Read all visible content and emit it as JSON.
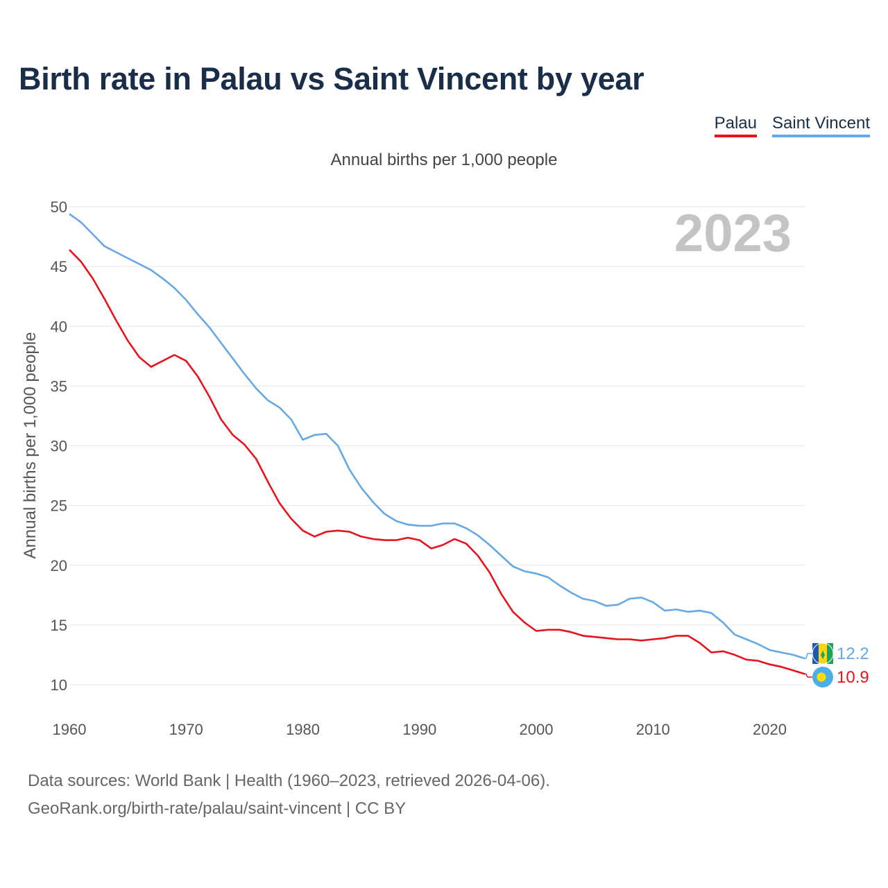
{
  "title": "Birth rate in Palau vs Saint Vincent by year",
  "subtitle": "Annual births per 1,000 people",
  "legend": {
    "palau": "Palau",
    "saint_vincent": "Saint Vincent"
  },
  "source_line1": "Data sources: World Bank | Health (1960–2023, retrieved 2026-04-06).",
  "source_line2": "GeoRank.org/birth-rate/palau/saint-vincent | CC BY",
  "colors": {
    "palau": "#e8121c",
    "saint_vincent": "#64a9e6",
    "title": "#1a2e4a"
  },
  "chart_data": {
    "type": "line",
    "title": "Birth rate in Palau vs Saint Vincent by year",
    "ylabel": "Annual births per 1,000 people",
    "xlabel": "",
    "year_label": "2023",
    "xlim": [
      1960,
      2023
    ],
    "ylim": [
      10,
      50
    ],
    "y_ticks": [
      10,
      15,
      20,
      25,
      30,
      35,
      40,
      45,
      50
    ],
    "x_ticks": [
      1960,
      1970,
      1980,
      1990,
      2000,
      2010,
      2020
    ],
    "x": [
      1960,
      1961,
      1962,
      1963,
      1964,
      1965,
      1966,
      1967,
      1968,
      1969,
      1970,
      1971,
      1972,
      1973,
      1974,
      1975,
      1976,
      1977,
      1978,
      1979,
      1980,
      1981,
      1982,
      1983,
      1984,
      1985,
      1986,
      1987,
      1988,
      1989,
      1990,
      1991,
      1992,
      1993,
      1994,
      1995,
      1996,
      1997,
      1998,
      1999,
      2000,
      2001,
      2002,
      2003,
      2004,
      2005,
      2006,
      2007,
      2008,
      2009,
      2010,
      2011,
      2012,
      2013,
      2014,
      2015,
      2016,
      2017,
      2018,
      2019,
      2020,
      2021,
      2022,
      2023
    ],
    "series": [
      {
        "name": "Palau",
        "end_label": "10.9",
        "values": [
          46.4,
          45.4,
          44.0,
          42.3,
          40.5,
          38.8,
          37.4,
          36.6,
          37.1,
          37.6,
          37.1,
          35.8,
          34.1,
          32.2,
          30.9,
          30.1,
          28.9,
          27.0,
          25.2,
          23.9,
          22.9,
          22.4,
          22.8,
          22.9,
          22.8,
          22.4,
          22.2,
          22.1,
          22.1,
          22.3,
          22.1,
          21.4,
          21.7,
          22.2,
          21.8,
          20.8,
          19.4,
          17.6,
          16.1,
          15.2,
          14.5,
          14.6,
          14.6,
          14.4,
          14.1,
          14.0,
          13.9,
          13.8,
          13.8,
          13.7,
          13.8,
          13.9,
          14.1,
          14.1,
          13.5,
          12.7,
          12.8,
          12.5,
          12.1,
          12.0,
          11.7,
          11.5,
          11.2,
          10.9
        ]
      },
      {
        "name": "Saint Vincent",
        "end_label": "12.2",
        "values": [
          49.4,
          48.7,
          47.7,
          46.7,
          46.2,
          45.7,
          45.2,
          44.7,
          44.0,
          43.2,
          42.2,
          41.0,
          39.9,
          38.6,
          37.3,
          36.0,
          34.8,
          33.8,
          33.2,
          32.2,
          30.5,
          30.9,
          31.0,
          30.0,
          28.0,
          26.5,
          25.3,
          24.3,
          23.7,
          23.4,
          23.3,
          23.3,
          23.5,
          23.5,
          23.1,
          22.5,
          21.7,
          20.8,
          19.9,
          19.5,
          19.3,
          19.0,
          18.3,
          17.7,
          17.2,
          17.0,
          16.6,
          16.7,
          17.2,
          17.3,
          16.9,
          16.2,
          16.3,
          16.1,
          16.2,
          16.0,
          15.2,
          14.2,
          13.8,
          13.4,
          12.9,
          12.7,
          12.5,
          12.2
        ]
      }
    ]
  }
}
